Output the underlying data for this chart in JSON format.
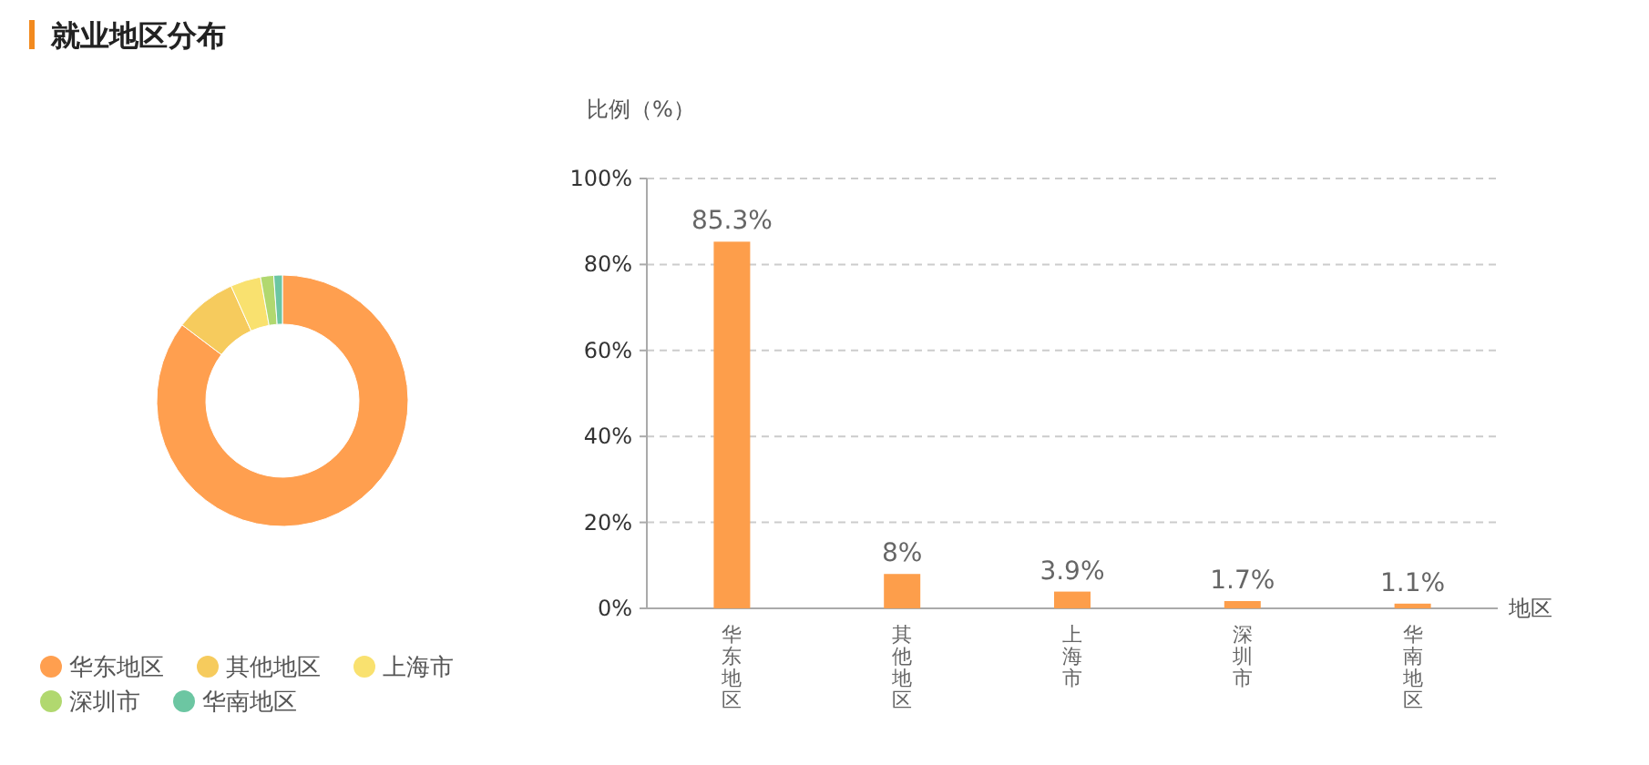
{
  "chart_data": [
    {
      "type": "donut",
      "title": "就业地区分布",
      "categories": [
        "华东地区",
        "其他地区",
        "上海市",
        "深圳市",
        "华南地区"
      ],
      "values": [
        85.3,
        8,
        3.9,
        1.7,
        1.1
      ],
      "colors": [
        "#ff9f4f",
        "#f6cb5d",
        "#f9e16f",
        "#b1d86f",
        "#6cc6a2"
      ],
      "legend": "bottom"
    },
    {
      "type": "bar",
      "categories": [
        "华东地区",
        "其他地区",
        "上海市",
        "深圳市",
        "华南地区"
      ],
      "values": [
        85.3,
        8,
        3.9,
        1.7,
        1.1
      ],
      "color": "#fd9e4b",
      "value_labels": [
        "85.3%",
        "8%",
        "3.9%",
        "1.7%",
        "1.1%"
      ],
      "ylabel": "比例（%）",
      "xlabel": "地区",
      "ylim": [
        0,
        100
      ],
      "yticks": [
        {
          "value": 0,
          "label": "0%"
        },
        {
          "value": 20,
          "label": "20%"
        },
        {
          "value": 40,
          "label": "40%"
        },
        {
          "value": 60,
          "label": "60%"
        },
        {
          "value": 80,
          "label": "80%"
        },
        {
          "value": 100,
          "label": "100%"
        }
      ],
      "grid": "y"
    }
  ]
}
